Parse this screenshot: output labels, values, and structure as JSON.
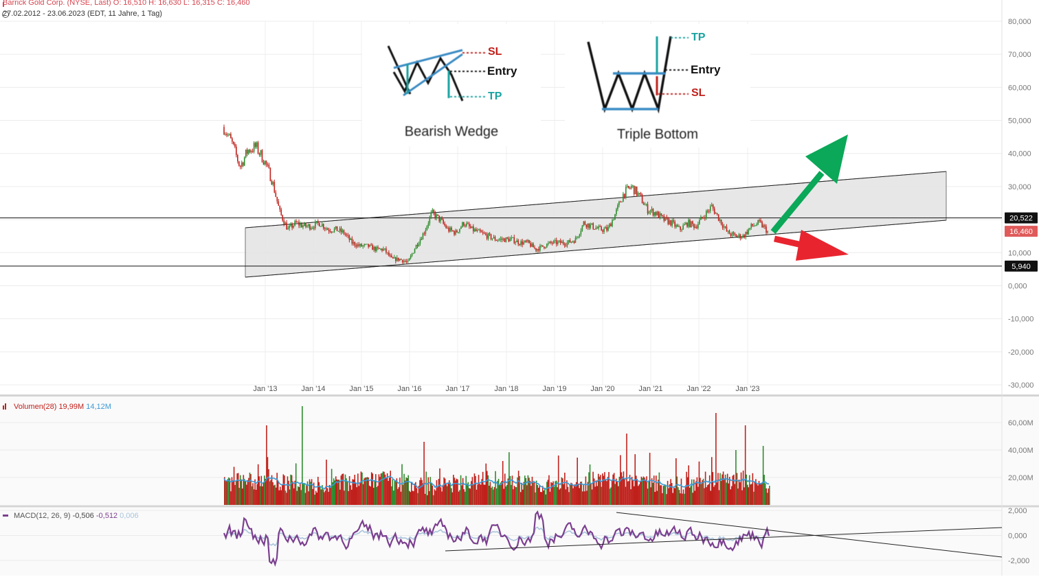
{
  "header": {
    "title": "Barrick Gold Corp. (NYSE, Last)  O: 16,510  H: 16,630  L: 16,315  C: 16,460",
    "range": "27.02.2012 - 23.06.2023   (EDT, 11 Jahre, 1 Tag)"
  },
  "patterns": {
    "bearish_wedge": {
      "title": "Bearish Wedge",
      "sl": "SL",
      "entry": "Entry",
      "tp": "TP"
    },
    "triple_bottom": {
      "title": "Triple Bottom",
      "tp": "TP",
      "entry": "Entry",
      "sl": "SL"
    }
  },
  "colors": {
    "up": "#2e8b2e",
    "down": "#c0201b",
    "volume_ma": "#3b9ad6",
    "macd": "#7b3f8f",
    "signal": "#a9c4dc",
    "arrow_up": "#0aa858",
    "arrow_down": "#e8252f",
    "channel_fill": "#e3e3e3",
    "current_price": "#e05a5a",
    "level": "#111111"
  },
  "chart_data": [
    {
      "type": "line",
      "panel": "price",
      "x": [
        "2012-02",
        "2012-04",
        "2012-06",
        "2012-08",
        "2012-10",
        "2012-12",
        "2013-02",
        "2013-04",
        "2013-06",
        "2013-08",
        "2013-10",
        "2013-12",
        "2014-02",
        "2014-04",
        "2014-06",
        "2014-08",
        "2014-10",
        "2014-12",
        "2015-02",
        "2015-04",
        "2015-06",
        "2015-08",
        "2015-10",
        "2015-12",
        "2016-02",
        "2016-04",
        "2016-06",
        "2016-08",
        "2016-10",
        "2016-12",
        "2017-02",
        "2017-04",
        "2017-06",
        "2017-08",
        "2017-10",
        "2017-12",
        "2018-02",
        "2018-04",
        "2018-06",
        "2018-08",
        "2018-10",
        "2018-12",
        "2019-02",
        "2019-04",
        "2019-06",
        "2019-08",
        "2019-10",
        "2019-12",
        "2020-02",
        "2020-04",
        "2020-06",
        "2020-08",
        "2020-10",
        "2020-12",
        "2021-02",
        "2021-04",
        "2021-06",
        "2021-08",
        "2021-10",
        "2021-12",
        "2022-02",
        "2022-04",
        "2022-06",
        "2022-08",
        "2022-10",
        "2022-12",
        "2023-02",
        "2023-04",
        "2023-06"
      ],
      "values": [
        48,
        43,
        36,
        41,
        42,
        38,
        32,
        22,
        17,
        19,
        18,
        18,
        19,
        17,
        17,
        16,
        13,
        12,
        12,
        11,
        11,
        8,
        8,
        7,
        12,
        16,
        22,
        20,
        17,
        16,
        19,
        17,
        16,
        15,
        14,
        14,
        14,
        13,
        13,
        11,
        12,
        13,
        13,
        13,
        14,
        19,
        18,
        17,
        17,
        22,
        28,
        30,
        27,
        23,
        22,
        20,
        19,
        17,
        19,
        18,
        21,
        24,
        20,
        16,
        15,
        15,
        18,
        19,
        16.46
      ],
      "ylim": [
        -30,
        80
      ],
      "y_ticks": [
        "80,000",
        "70,000",
        "60,000",
        "50,000",
        "40,000",
        "30,000",
        "20,000",
        "10,000",
        "0,000",
        "-10,000",
        "-20,000",
        "-30,000"
      ],
      "x_ticks": [
        "Jan '13",
        "Jan '14",
        "Jan '15",
        "Jan '16",
        "Jan '17",
        "Jan '18",
        "Jan '19",
        "Jan '20",
        "Jan '21",
        "Jan '22",
        "Jan '23"
      ],
      "levels": [
        "20,522",
        "5,940"
      ],
      "current": "16,460"
    },
    {
      "type": "bar",
      "panel": "volume",
      "label": "Volumen(28)",
      "value_a": "19,99M",
      "value_b": "14,12M",
      "ylim": [
        0,
        75
      ],
      "y_ticks": [
        "60,00M",
        "40,00M",
        "20,00M"
      ]
    },
    {
      "type": "line",
      "panel": "macd",
      "label": "MACD(12, 26, 9)",
      "value_a": "-0,506",
      "value_b": "-0,512",
      "value_c": "0,006",
      "ylim": [
        -3,
        2
      ],
      "y_ticks": [
        "2,000",
        "0,000",
        "-2,000"
      ]
    }
  ]
}
